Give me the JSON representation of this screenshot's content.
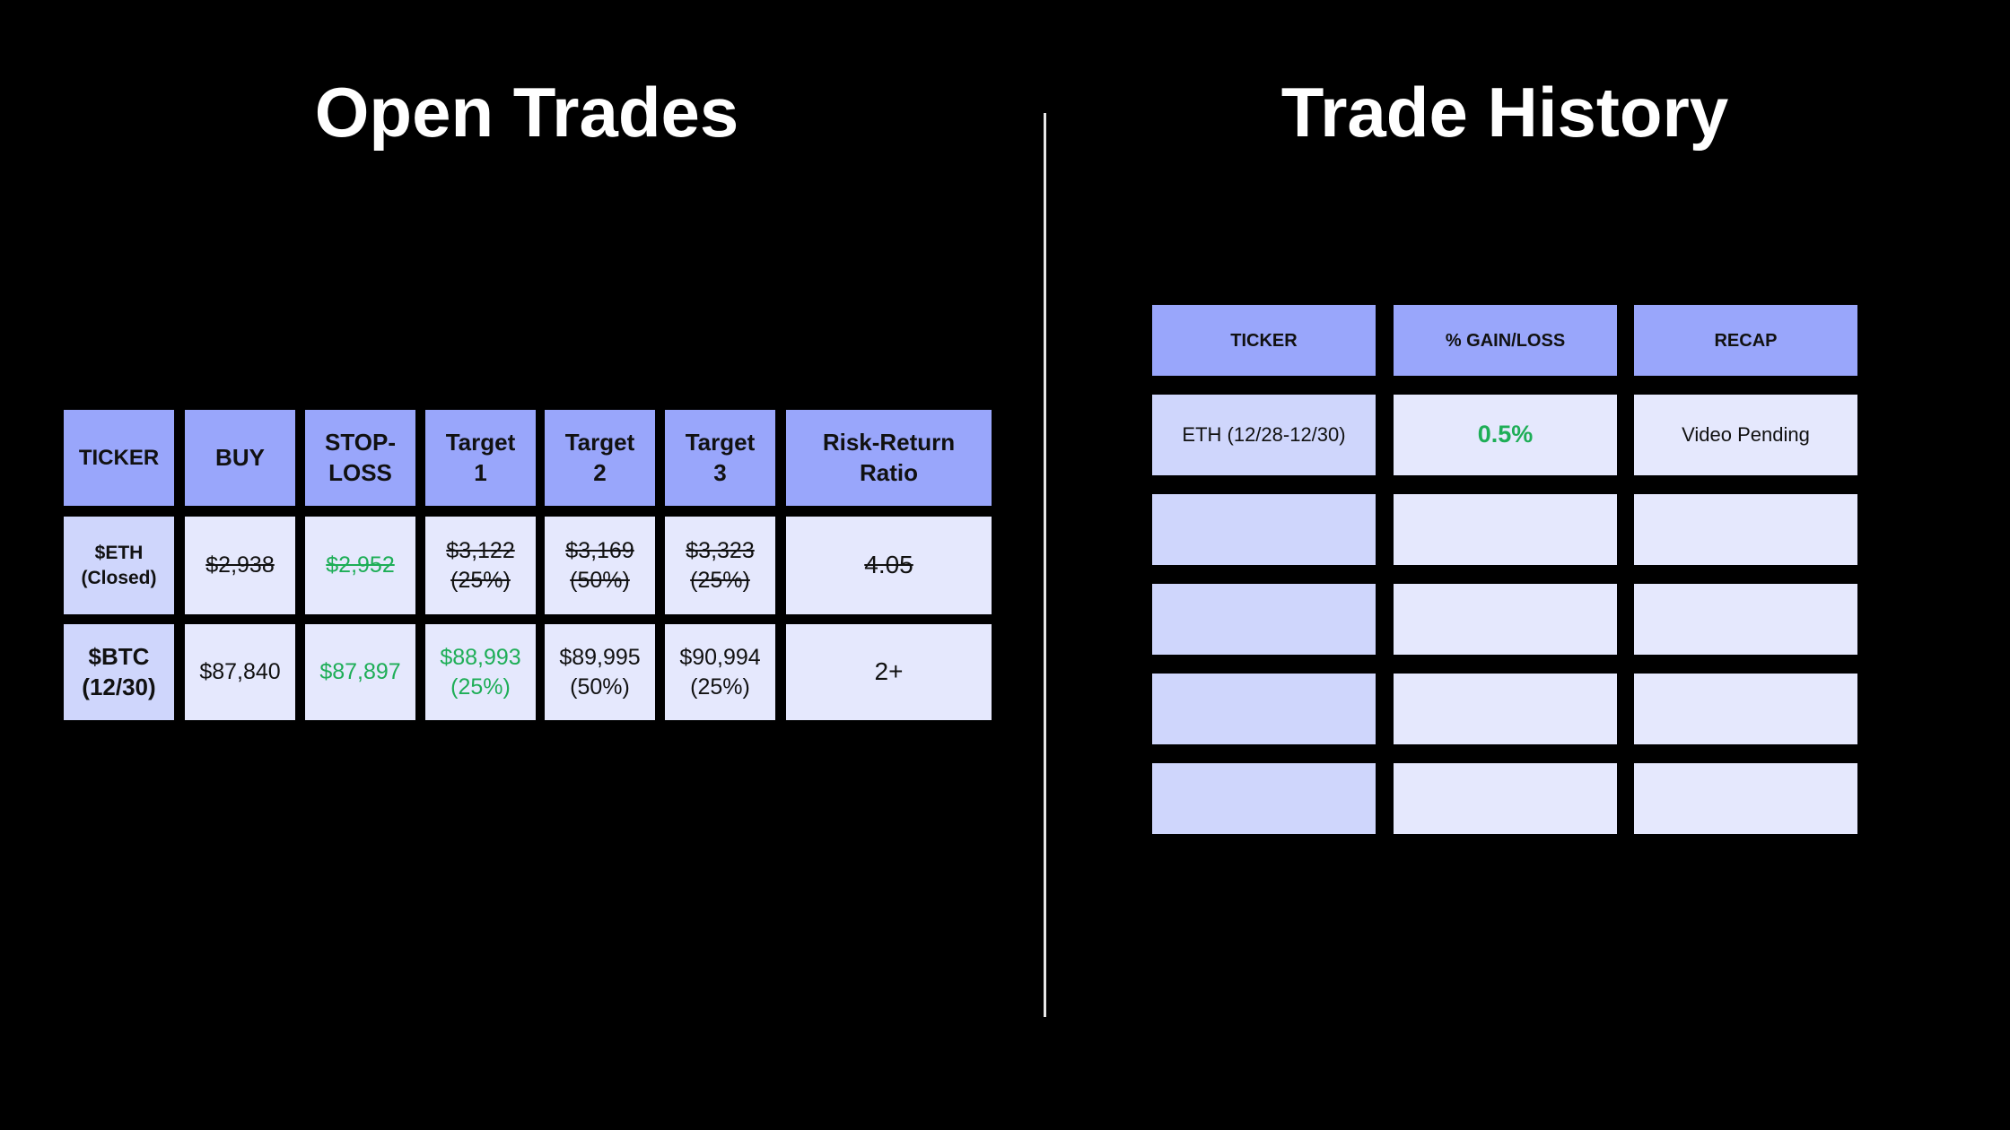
{
  "open_trades": {
    "title": "Open Trades",
    "headers": [
      "TICKER",
      "BUY",
      "STOP-LOSS",
      "Target 1",
      "Target 2",
      "Target 3",
      "Risk-Return Ratio"
    ],
    "rows": [
      [
        "$ETH (Closed)",
        "$2,938",
        "$2,952",
        "$3,122 (25%)",
        "$3,169 (50%)",
        "$3,323 (25%)",
        "4.05"
      ],
      [
        "$BTC (12/30)",
        "$87,840",
        "$87,897",
        "$88,993 (25%)",
        "$89,995 (50%)",
        "$90,994 (25%)",
        "2+"
      ]
    ]
  },
  "trade_history": {
    "title": "Trade History",
    "headers": [
      "TICKER",
      "% GAIN/LOSS",
      "RECAP"
    ],
    "rows": [
      [
        "ETH (12/28-12/30)",
        "0.5%",
        "Video Pending"
      ]
    ]
  }
}
